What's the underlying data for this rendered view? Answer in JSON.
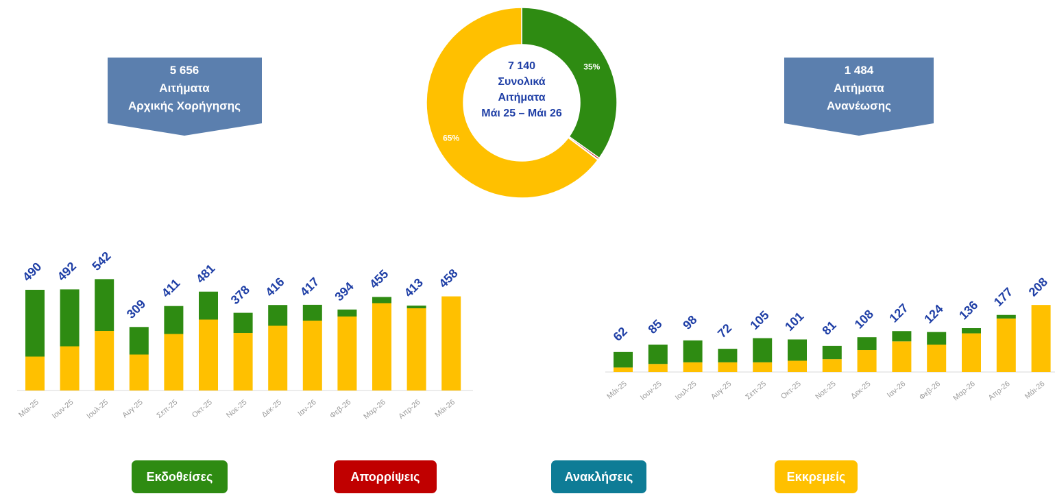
{
  "colors": {
    "issued": "#2E8B12",
    "rejected": "#C00000",
    "revoked": "#0E7C96",
    "pending": "#FFC000",
    "callout": "#5B7FAE",
    "label_blue": "#1F3FA6"
  },
  "callout_left": {
    "number": "5 656",
    "line1": "Αιτήματα",
    "line2": "Αρχικής Χορήγησης"
  },
  "callout_right": {
    "number": "1 484",
    "line1": "Αιτήματα",
    "line2": "Ανανέωσης"
  },
  "donut": {
    "center_number": "7 140",
    "center_line1": "Συνολικά",
    "center_line2": "Αιτήματα",
    "center_line3": "Μάι 25 – Μάι 26"
  },
  "legend": {
    "issued": "Εκδοθείσες",
    "rejected": "Απορρίψεις",
    "revoked": "Ανακλήσεις",
    "pending": "Εκκρεμείς"
  },
  "chart_data": [
    {
      "type": "pie",
      "categories": [
        "Εκδοθείσες",
        "Απορρίψεις",
        "Ανακλήσεις",
        "Εκκρεμείς"
      ],
      "values": [
        35,
        0.3,
        0.1,
        65
      ],
      "slice_labels": [
        "35%",
        "",
        "",
        "65%"
      ],
      "colors": [
        "#2E8B12",
        "#C00000",
        "#0E7C96",
        "#FFC000"
      ]
    },
    {
      "type": "bar",
      "stacked": true,
      "categories": [
        "Μάι-25",
        "Ιουν-25",
        "Ιουλ-25",
        "Αυγ-25",
        "Σεπ-25",
        "Οκτ-25",
        "Νοε-25",
        "Δεκ-25",
        "Ιαν-26",
        "Φεβ-26",
        "Μαρ-26",
        "Απρ-26",
        "Μάι-26"
      ],
      "totals": [
        490,
        492,
        542,
        309,
        411,
        481,
        378,
        416,
        417,
        394,
        455,
        413,
        458
      ],
      "series": [
        {
          "name": "Εκκρεμείς",
          "values": [
            165,
            215,
            290,
            175,
            275,
            345,
            280,
            315,
            340,
            360,
            425,
            400,
            458
          ]
        },
        {
          "name": "Εκδοθείσες",
          "values": [
            325,
            277,
            252,
            134,
            136,
            136,
            98,
            101,
            77,
            34,
            30,
            13,
            0
          ]
        }
      ],
      "ylim": [
        0,
        560
      ]
    },
    {
      "type": "bar",
      "stacked": true,
      "categories": [
        "Μάι-25",
        "Ιουν-25",
        "Ιουλ-25",
        "Αυγ-25",
        "Σεπ-25",
        "Οκτ-25",
        "Νοε-25",
        "Δεκ-25",
        "Ιαν-26",
        "Φεβ-26",
        "Μαρ-26",
        "Απρ-26",
        "Μάι-26"
      ],
      "totals": [
        62,
        85,
        98,
        72,
        105,
        101,
        81,
        108,
        127,
        124,
        136,
        177,
        208
      ],
      "series": [
        {
          "name": "Εκκρεμείς",
          "values": [
            14,
            25,
            30,
            30,
            30,
            35,
            40,
            68,
            95,
            85,
            120,
            166,
            208
          ]
        },
        {
          "name": "Εκδοθείσες",
          "values": [
            48,
            60,
            68,
            42,
            75,
            66,
            41,
            40,
            32,
            39,
            16,
            11,
            0
          ]
        }
      ],
      "ylim": [
        0,
        220
      ]
    }
  ]
}
